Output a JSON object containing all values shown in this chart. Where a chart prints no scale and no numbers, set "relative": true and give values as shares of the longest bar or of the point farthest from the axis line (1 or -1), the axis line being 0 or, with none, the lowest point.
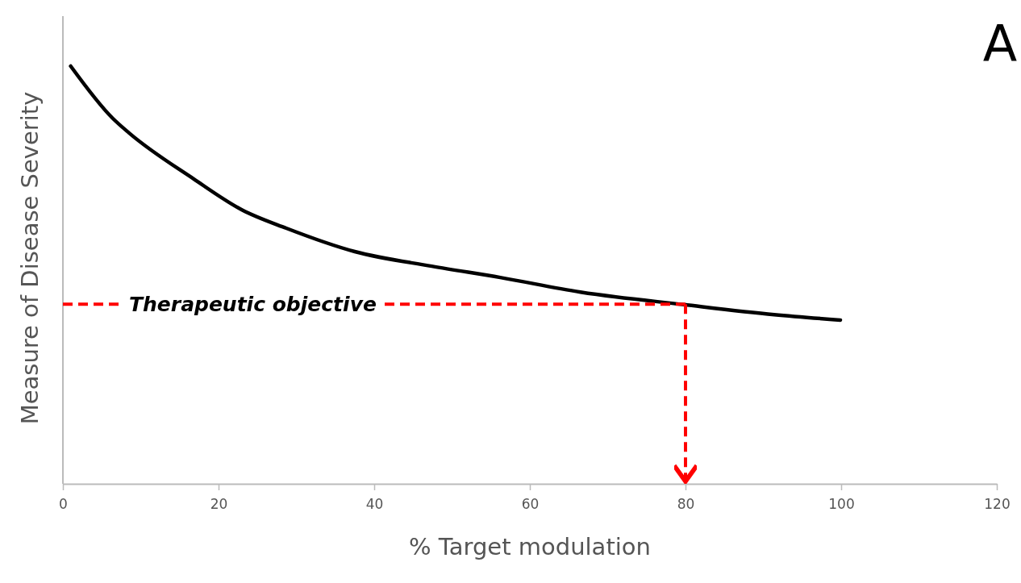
{
  "chart_data": {
    "type": "line",
    "xlabel": "% Target modulation",
    "ylabel": "Measure of Disease Severity",
    "relative": true,
    "xlim": [
      0,
      120
    ],
    "xticks": [
      0,
      20,
      40,
      60,
      80,
      100,
      120
    ],
    "series": [
      {
        "color": "#000000",
        "x": [
          1,
          6.4,
          8.5,
          16.8,
          23,
          28.7,
          37.5,
          47.4,
          56.2,
          66.5,
          79.8,
          91.4,
          99.9
        ],
        "values": [
          1,
          0.875,
          0.84,
          0.73,
          0.656,
          0.612,
          0.556,
          0.521,
          0.494,
          0.459,
          0.429,
          0.405,
          0.392
        ]
      }
    ],
    "ref_lines": [
      {
        "axis": "y",
        "value": 0.43,
        "label": "Therapeutic objective",
        "color": "#ff0000",
        "line_style": "dashed"
      },
      {
        "axis": "x",
        "value": 80,
        "color": "#ff0000",
        "line_style": "dashed"
      }
    ],
    "annotations": [
      "A"
    ],
    "grid": false,
    "marker": "none",
    "line_style": "solid"
  }
}
